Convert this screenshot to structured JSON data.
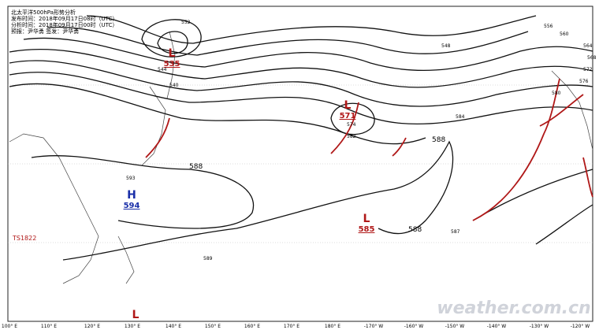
{
  "header": {
    "lines": [
      "北太平洋500hPa形势分析",
      "发布时间：2018年09月17日08时（UTC）",
      "分析时间：2018年09月17日00时（UTC）",
      "预报：尹华勇 签发：尹华勇"
    ]
  },
  "centers": [
    {
      "type": "L",
      "value": "535"
    },
    {
      "type": "L",
      "value": "571"
    },
    {
      "type": "H",
      "value": "594"
    },
    {
      "type": "L",
      "value": "585"
    },
    {
      "type": "L",
      "value": ""
    }
  ],
  "contour_labels": [
    "588",
    "588",
    "588",
    "584",
    "580",
    "576",
    "572",
    "568",
    "564",
    "560",
    "556",
    "552",
    "548",
    "544",
    "540",
    "574",
    "582",
    "593",
    "589",
    "587"
  ],
  "storm_label": "TS1822",
  "lon_labels": [
    "100° E",
    "110° E",
    "120° E",
    "130° E",
    "140° E",
    "150° E",
    "160° E",
    "170° E",
    "180° E",
    "-170° W",
    "-160° W",
    "-150° W",
    "-140° W",
    "-130° W",
    "-120° W"
  ],
  "watermark": "weather.com.cn"
}
